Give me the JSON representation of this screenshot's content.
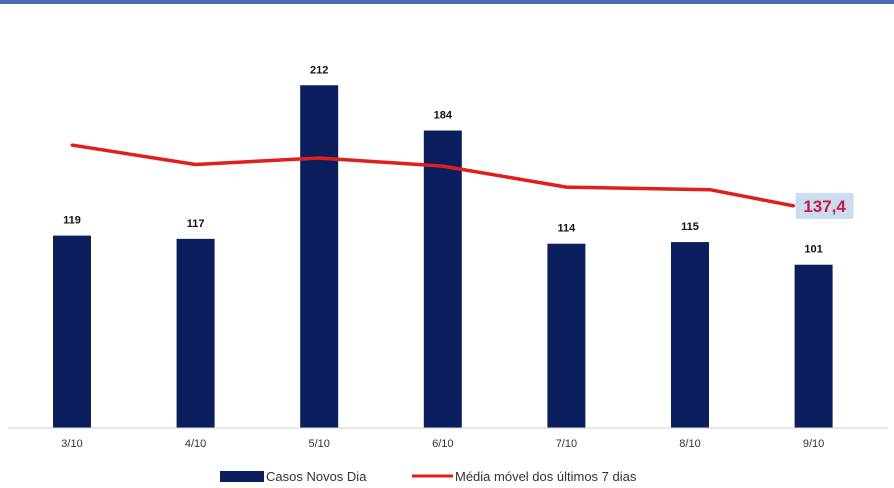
{
  "chart_data": {
    "type": "bar",
    "categories": [
      "3/10",
      "4/10",
      "5/10",
      "6/10",
      "7/10",
      "8/10",
      "9/10"
    ],
    "series": [
      {
        "name": "Casos Novos Dia",
        "type": "bar",
        "values": [
          119,
          117,
          212,
          184,
          114,
          115,
          101
        ],
        "color": "#0b1f5e"
      },
      {
        "name": "Média móvel dos últimos 7 dias",
        "type": "line",
        "values": [
          175,
          163,
          167,
          162,
          149,
          137.4,
          137.4
        ],
        "color": "#e01e1e"
      }
    ],
    "line_last_label": "137,4",
    "line_last_label_color": "#cc1a3a",
    "line_last_label_bg": "#c9dcf0",
    "ylim": [
      0,
      240
    ],
    "legend_position": "bottom",
    "grid": false
  }
}
